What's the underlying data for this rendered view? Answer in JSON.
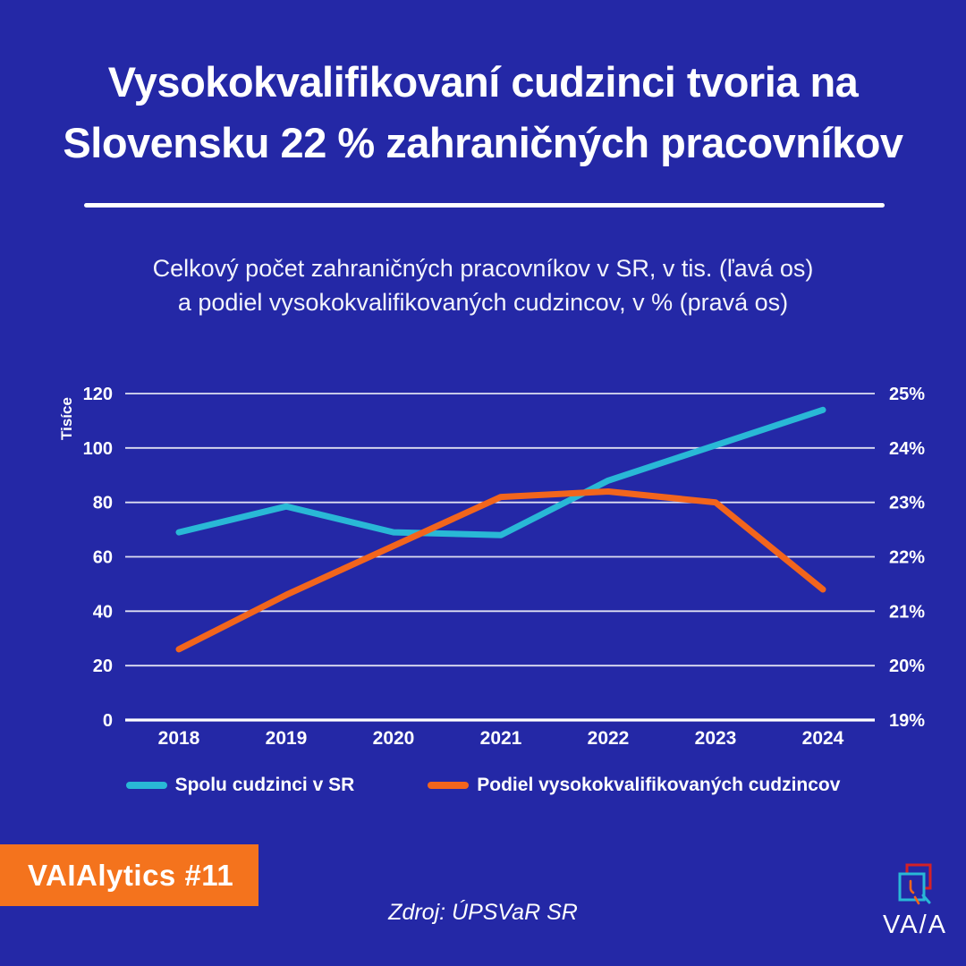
{
  "header": {
    "title_line1": "Vysokokvalifikovaní cudzinci tvoria na",
    "title_line2": "Slovensku 22 % zahraničných pracovníkov",
    "subtitle_line1": "Celkový počet zahraničných pracovníkov v SR, v tis. (ľavá os)",
    "subtitle_line2": "a podiel vysokokvalifikovaných cudzincov, v % (pravá os)"
  },
  "chart_data": {
    "type": "line",
    "categories": [
      "2018",
      "2019",
      "2020",
      "2021",
      "2022",
      "2023",
      "2024"
    ],
    "series": [
      {
        "name": "Spolu cudzinci v SR",
        "axis": "left",
        "color": "#29b8d6",
        "values": [
          69,
          78.5,
          69,
          68,
          88,
          101,
          114
        ]
      },
      {
        "name": "Podiel vysokokvalifikovaných cudzincov",
        "axis": "right",
        "color": "#f2651c",
        "values": [
          20.3,
          21.3,
          22.2,
          23.1,
          23.2,
          23.0,
          21.4
        ]
      }
    ],
    "left_axis": {
      "label": "Tisíce",
      "min": 0,
      "max": 120,
      "step": 20
    },
    "right_axis": {
      "min": 19,
      "max": 25,
      "step": 1,
      "suffix": "%"
    },
    "grid": true,
    "legend_position": "bottom"
  },
  "footer": {
    "badge": "VAIAlytics #11",
    "source": "Zdroj: ÚPSVaR SR"
  },
  "logo": {
    "wordmark": "VA/A"
  },
  "colors": {
    "background": "#2428a6",
    "cyan": "#29b8d6",
    "orange": "#f2651c",
    "badge": "#f4731d",
    "logo_red": "#d42127",
    "grid_line": "#e6e8f4",
    "axis_line": "#ffffff",
    "text": "#ffffff"
  }
}
